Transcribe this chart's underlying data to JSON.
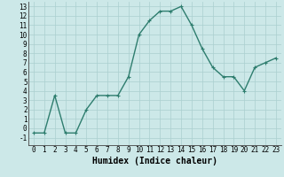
{
  "x": [
    0,
    1,
    2,
    3,
    4,
    5,
    6,
    7,
    8,
    9,
    10,
    11,
    12,
    13,
    14,
    15,
    16,
    17,
    18,
    19,
    20,
    21,
    22,
    23
  ],
  "y": [
    -0.5,
    -0.5,
    3.5,
    -0.5,
    -0.5,
    2.0,
    3.5,
    3.5,
    3.5,
    5.5,
    10.0,
    11.5,
    12.5,
    12.5,
    13.0,
    11.0,
    8.5,
    6.5,
    5.5,
    5.5,
    4.0,
    6.5,
    7.0,
    7.5
  ],
  "line_color": "#2e7d6e",
  "marker": "+",
  "marker_size": 3,
  "bg_color": "#cce8e8",
  "grid_color": "#aacfcf",
  "xlabel": "Humidex (Indice chaleur)",
  "ylabel": "",
  "xlim": [
    -0.5,
    23.5
  ],
  "ylim": [
    -1.8,
    13.5
  ],
  "yticks": [
    -1,
    0,
    1,
    2,
    3,
    4,
    5,
    6,
    7,
    8,
    9,
    10,
    11,
    12,
    13
  ],
  "xticks": [
    0,
    1,
    2,
    3,
    4,
    5,
    6,
    7,
    8,
    9,
    10,
    11,
    12,
    13,
    14,
    15,
    16,
    17,
    18,
    19,
    20,
    21,
    22,
    23
  ],
  "xlabel_fontsize": 7,
  "tick_fontsize": 5.5,
  "linewidth": 1.0
}
